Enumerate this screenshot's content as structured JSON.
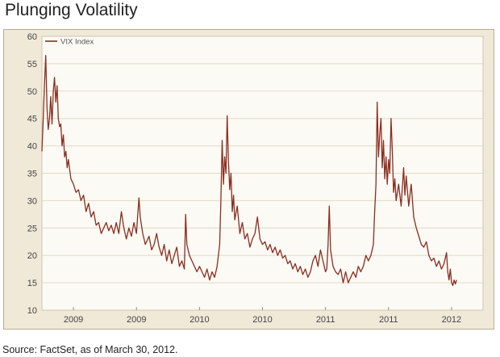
{
  "title": "Plunging Volatility",
  "source": "Source: FactSet, as of March 30, 2012.",
  "colors": {
    "line": "#8b2e1f",
    "plot_bg": "#fbfaf5",
    "frame_bg": "#f0e9d7",
    "grid": "#e3dac4",
    "axis_text": "#444444"
  },
  "chart_data": {
    "type": "line",
    "title": "Plunging Volatility",
    "xlabel": "",
    "ylabel": "",
    "ylim": [
      10,
      60
    ],
    "yticks": [
      10,
      15,
      20,
      25,
      30,
      35,
      40,
      45,
      50,
      55,
      60
    ],
    "xlim": [
      2008.75,
      2012.25
    ],
    "xticks": [
      {
        "x": 2009.0,
        "label": "2009"
      },
      {
        "x": 2009.5,
        "label": "2009"
      },
      {
        "x": 2010.0,
        "label": "2010"
      },
      {
        "x": 2010.5,
        "label": "2010"
      },
      {
        "x": 2011.0,
        "label": "2011"
      },
      {
        "x": 2011.5,
        "label": "2011"
      },
      {
        "x": 2012.0,
        "label": "2012"
      }
    ],
    "grid": true,
    "legend_position": "top-left",
    "series": [
      {
        "name": "VIX Index",
        "points": [
          [
            2008.75,
            39
          ],
          [
            2008.76,
            45
          ],
          [
            2008.77,
            51
          ],
          [
            2008.78,
            56.5
          ],
          [
            2008.79,
            47
          ],
          [
            2008.8,
            43
          ],
          [
            2008.81,
            45
          ],
          [
            2008.82,
            49
          ],
          [
            2008.83,
            44
          ],
          [
            2008.84,
            50
          ],
          [
            2008.85,
            52.5
          ],
          [
            2008.86,
            48
          ],
          [
            2008.87,
            51
          ],
          [
            2008.88,
            45
          ],
          [
            2008.89,
            43.5
          ],
          [
            2008.9,
            44
          ],
          [
            2008.91,
            40
          ],
          [
            2008.92,
            42
          ],
          [
            2008.93,
            38
          ],
          [
            2008.94,
            39
          ],
          [
            2008.95,
            36
          ],
          [
            2008.96,
            37.5
          ],
          [
            2008.98,
            34
          ],
          [
            2009.0,
            33
          ],
          [
            2009.02,
            31.5
          ],
          [
            2009.04,
            32
          ],
          [
            2009.06,
            30
          ],
          [
            2009.08,
            31
          ],
          [
            2009.1,
            28
          ],
          [
            2009.12,
            29.5
          ],
          [
            2009.14,
            27
          ],
          [
            2009.16,
            28
          ],
          [
            2009.18,
            25.5
          ],
          [
            2009.2,
            26
          ],
          [
            2009.22,
            24
          ],
          [
            2009.24,
            25
          ],
          [
            2009.26,
            26
          ],
          [
            2009.28,
            24.5
          ],
          [
            2009.3,
            25.5
          ],
          [
            2009.32,
            24
          ],
          [
            2009.34,
            26
          ],
          [
            2009.36,
            24
          ],
          [
            2009.38,
            28
          ],
          [
            2009.4,
            25
          ],
          [
            2009.42,
            23
          ],
          [
            2009.44,
            25
          ],
          [
            2009.46,
            23.5
          ],
          [
            2009.48,
            26
          ],
          [
            2009.5,
            24
          ],
          [
            2009.52,
            30.5
          ],
          [
            2009.53,
            27
          ],
          [
            2009.55,
            24
          ],
          [
            2009.57,
            22
          ],
          [
            2009.6,
            23.5
          ],
          [
            2009.62,
            21
          ],
          [
            2009.64,
            22
          ],
          [
            2009.66,
            24
          ],
          [
            2009.68,
            21.5
          ],
          [
            2009.7,
            20
          ],
          [
            2009.72,
            22
          ],
          [
            2009.74,
            19
          ],
          [
            2009.76,
            21
          ],
          [
            2009.78,
            18.5
          ],
          [
            2009.8,
            20
          ],
          [
            2009.82,
            21.5
          ],
          [
            2009.84,
            18
          ],
          [
            2009.86,
            19
          ],
          [
            2009.88,
            17.5
          ],
          [
            2009.89,
            27.5
          ],
          [
            2009.9,
            22
          ],
          [
            2009.92,
            20
          ],
          [
            2009.94,
            19
          ],
          [
            2009.96,
            18
          ],
          [
            2009.98,
            17
          ],
          [
            2010.0,
            18
          ],
          [
            2010.02,
            17
          ],
          [
            2010.04,
            16
          ],
          [
            2010.06,
            17.5
          ],
          [
            2010.08,
            15.5
          ],
          [
            2010.1,
            17
          ],
          [
            2010.12,
            16
          ],
          [
            2010.14,
            18
          ],
          [
            2010.16,
            22
          ],
          [
            2010.17,
            30
          ],
          [
            2010.18,
            41
          ],
          [
            2010.19,
            33
          ],
          [
            2010.2,
            38
          ],
          [
            2010.21,
            35
          ],
          [
            2010.22,
            45.5
          ],
          [
            2010.23,
            37
          ],
          [
            2010.24,
            32
          ],
          [
            2010.25,
            35
          ],
          [
            2010.26,
            28
          ],
          [
            2010.27,
            31
          ],
          [
            2010.28,
            26.5
          ],
          [
            2010.3,
            29
          ],
          [
            2010.32,
            24
          ],
          [
            2010.34,
            26
          ],
          [
            2010.36,
            23
          ],
          [
            2010.38,
            24
          ],
          [
            2010.4,
            21.5
          ],
          [
            2010.42,
            23
          ],
          [
            2010.44,
            24
          ],
          [
            2010.46,
            27
          ],
          [
            2010.48,
            23
          ],
          [
            2010.5,
            22
          ],
          [
            2010.52,
            22.5
          ],
          [
            2010.54,
            21
          ],
          [
            2010.56,
            22
          ],
          [
            2010.58,
            20.5
          ],
          [
            2010.6,
            21.5
          ],
          [
            2010.62,
            20
          ],
          [
            2010.64,
            21
          ],
          [
            2010.66,
            19.5
          ],
          [
            2010.68,
            20
          ],
          [
            2010.7,
            18.5
          ],
          [
            2010.72,
            19
          ],
          [
            2010.74,
            17.5
          ],
          [
            2010.76,
            18.5
          ],
          [
            2010.78,
            17
          ],
          [
            2010.8,
            18
          ],
          [
            2010.82,
            16.5
          ],
          [
            2010.84,
            17.5
          ],
          [
            2010.86,
            16
          ],
          [
            2010.88,
            17
          ],
          [
            2010.9,
            19
          ],
          [
            2010.92,
            20
          ],
          [
            2010.94,
            18
          ],
          [
            2010.96,
            21
          ],
          [
            2010.98,
            19
          ],
          [
            2011.0,
            17
          ],
          [
            2011.01,
            17.5
          ],
          [
            2011.02,
            22
          ],
          [
            2011.03,
            29
          ],
          [
            2011.04,
            21
          ],
          [
            2011.06,
            18
          ],
          [
            2011.08,
            17
          ],
          [
            2011.1,
            16.5
          ],
          [
            2011.12,
            17.5
          ],
          [
            2011.14,
            15
          ],
          [
            2011.16,
            17
          ],
          [
            2011.18,
            15
          ],
          [
            2011.2,
            16
          ],
          [
            2011.22,
            17
          ],
          [
            2011.24,
            16
          ],
          [
            2011.26,
            18
          ],
          [
            2011.28,
            17
          ],
          [
            2011.3,
            18
          ],
          [
            2011.32,
            20
          ],
          [
            2011.34,
            19
          ],
          [
            2011.36,
            20
          ],
          [
            2011.38,
            22
          ],
          [
            2011.39,
            28
          ],
          [
            2011.4,
            33
          ],
          [
            2011.41,
            48
          ],
          [
            2011.42,
            38
          ],
          [
            2011.43,
            42
          ],
          [
            2011.44,
            45
          ],
          [
            2011.45,
            36
          ],
          [
            2011.46,
            41
          ],
          [
            2011.47,
            34
          ],
          [
            2011.48,
            38
          ],
          [
            2011.49,
            33
          ],
          [
            2011.5,
            37.5
          ],
          [
            2011.51,
            35
          ],
          [
            2011.52,
            45
          ],
          [
            2011.53,
            39
          ],
          [
            2011.54,
            31.5
          ],
          [
            2011.55,
            34
          ],
          [
            2011.56,
            30
          ],
          [
            2011.58,
            33
          ],
          [
            2011.6,
            29
          ],
          [
            2011.62,
            36
          ],
          [
            2011.63,
            31
          ],
          [
            2011.64,
            34.5
          ],
          [
            2011.66,
            29
          ],
          [
            2011.68,
            33
          ],
          [
            2011.7,
            27
          ],
          [
            2011.72,
            25
          ],
          [
            2011.74,
            23.5
          ],
          [
            2011.76,
            22
          ],
          [
            2011.78,
            21.5
          ],
          [
            2011.8,
            22.5
          ],
          [
            2011.82,
            20
          ],
          [
            2011.84,
            19
          ],
          [
            2011.86,
            19.5
          ],
          [
            2011.88,
            18
          ],
          [
            2011.9,
            19
          ],
          [
            2011.92,
            17.5
          ],
          [
            2011.94,
            18.5
          ],
          [
            2011.96,
            20.5
          ],
          [
            2011.97,
            17
          ],
          [
            2011.98,
            15.5
          ],
          [
            2011.99,
            17.5
          ],
          [
            2012.0,
            15
          ],
          [
            2012.01,
            14.5
          ],
          [
            2012.02,
            15.5
          ],
          [
            2012.03,
            14.8
          ],
          [
            2012.04,
            15.5
          ]
        ]
      }
    ]
  }
}
